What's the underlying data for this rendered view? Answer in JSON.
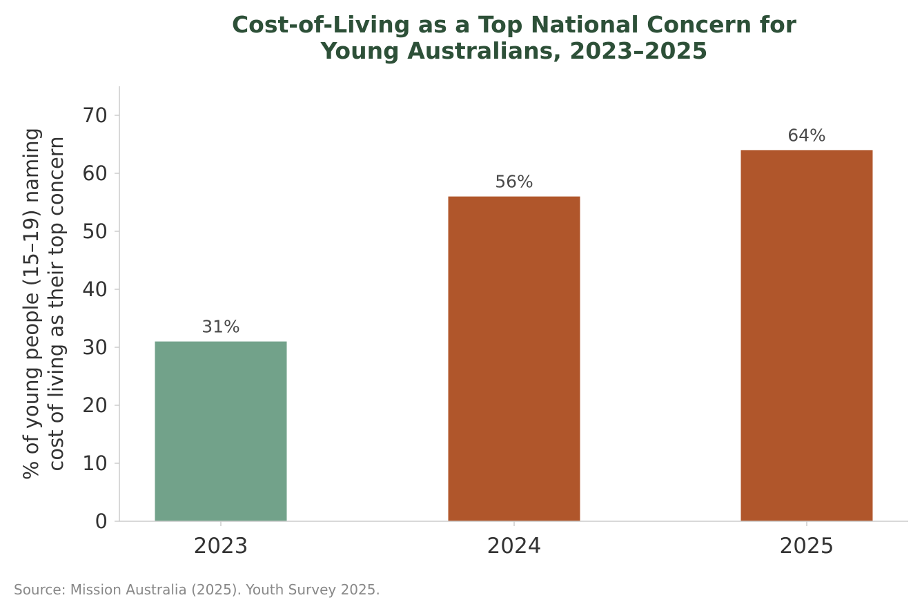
{
  "chart_data": {
    "type": "bar",
    "title": [
      "Cost-of-Living as a Top National Concern for",
      "Young Australians, 2023–2025"
    ],
    "categories": [
      "2023",
      "2024",
      "2025"
    ],
    "values": [
      31,
      56,
      64
    ],
    "value_labels": [
      "31%",
      "56%",
      "64%"
    ],
    "bar_colors": [
      "#72a28a",
      "#b0562b",
      "#b0562b"
    ],
    "ylabel": [
      "% of young people (15–19) naming",
      "cost of living as their top concern"
    ],
    "xlabel": "",
    "ylim": [
      0,
      75
    ],
    "yticks": [
      0,
      10,
      20,
      30,
      40,
      50,
      60,
      70
    ],
    "grid": false,
    "legend": "none",
    "axis_color": "#cccccc",
    "title_color": "#2d5038"
  },
  "source_note": "Source: Mission Australia (2025). Youth Survey 2025."
}
